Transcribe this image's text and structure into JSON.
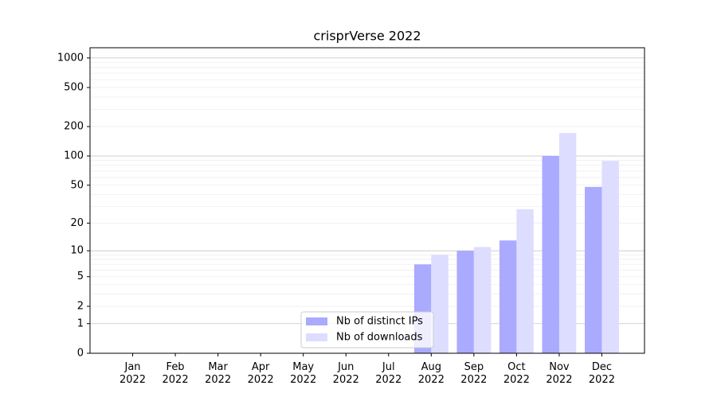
{
  "chart_data": {
    "type": "bar",
    "title": "crisprVerse 2022",
    "categories": [
      "Jan 2022",
      "Feb 2022",
      "Mar 2022",
      "Apr 2022",
      "May 2022",
      "Jun 2022",
      "Jul 2022",
      "Aug 2022",
      "Sep 2022",
      "Oct 2022",
      "Nov 2022",
      "Dec 2022"
    ],
    "series": [
      {
        "name": "Nb of distinct IPs",
        "color": "#aaaaff",
        "values": [
          0,
          0,
          0,
          0,
          0,
          0,
          0,
          7,
          10,
          13,
          100,
          48
        ]
      },
      {
        "name": "Nb of downloads",
        "color": "#ddddff",
        "values": [
          0,
          0,
          0,
          0,
          0,
          0,
          0,
          9,
          11,
          28,
          172,
          89
        ]
      }
    ],
    "yscale": "log1p",
    "ylim": [
      0,
      1270
    ],
    "yticks": [
      0,
      1,
      2,
      5,
      10,
      20,
      50,
      100,
      200,
      500,
      1000
    ],
    "minor_yticks": [
      3,
      4,
      6,
      7,
      8,
      9,
      30,
      40,
      60,
      70,
      80,
      90,
      300,
      400,
      600,
      700,
      800,
      900
    ],
    "grid": true,
    "legend": "lower center"
  }
}
